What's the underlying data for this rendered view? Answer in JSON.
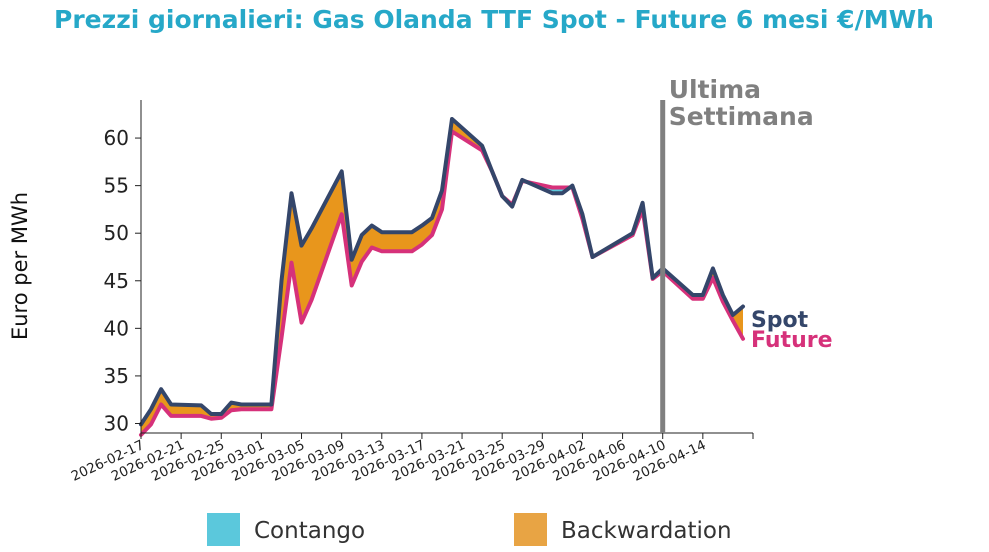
{
  "colors": {
    "title": "#26a8c8",
    "spot": "#34466a",
    "future": "#d6317a",
    "contango": "#5bc8dc",
    "backwardation": "#e8a444",
    "backwardation_fill": "#e8961c",
    "marker": "#808080"
  },
  "chart_data": {
    "type": "line",
    "title": "Prezzi giornalieri: Gas Olanda TTF Spot - Future 6 mesi €/MWh",
    "ylabel": "Euro per MWh",
    "xlabel": "",
    "ylim": [
      29,
      64
    ],
    "y_ticks": [
      30,
      35,
      40,
      45,
      50,
      55,
      60
    ],
    "x_start": "2026-02-17",
    "x_end": "2026-04-19",
    "x_tick_labels": [
      "2026-02-17",
      "2026-02-21",
      "2026-02-25",
      "2026-03-01",
      "2026-03-05",
      "2026-03-09",
      "2026-03-13",
      "2026-03-17",
      "2026-03-21",
      "2026-03-25",
      "2026-03-29",
      "2026-04-02",
      "2026-04-06",
      "2026-04-10",
      "2026-04-14"
    ],
    "dates": [
      "2026-02-17",
      "2026-02-18",
      "2026-02-19",
      "2026-02-20",
      "2026-02-23",
      "2026-02-24",
      "2026-02-25",
      "2026-02-26",
      "2026-02-27",
      "2026-03-02",
      "2026-03-03",
      "2026-03-04",
      "2026-03-05",
      "2026-03-06",
      "2026-03-09",
      "2026-03-10",
      "2026-03-11",
      "2026-03-12",
      "2026-03-13",
      "2026-03-16",
      "2026-03-17",
      "2026-03-18",
      "2026-03-19",
      "2026-03-20",
      "2026-03-23",
      "2026-03-24",
      "2026-03-25",
      "2026-03-26",
      "2026-03-27",
      "2026-03-30",
      "2026-03-31",
      "2026-04-01",
      "2026-04-02",
      "2026-04-03",
      "2026-04-07",
      "2026-04-08",
      "2026-04-09",
      "2026-04-10",
      "2026-04-13",
      "2026-04-14",
      "2026-04-15",
      "2026-04-16",
      "2026-04-17",
      "2026-04-18"
    ],
    "series": [
      {
        "name": "Spot",
        "values": [
          29.9,
          31.5,
          33.6,
          32.0,
          31.9,
          31.0,
          31.0,
          32.2,
          32.0,
          32.0,
          45.0,
          54.2,
          48.7,
          50.5,
          56.5,
          47.2,
          49.8,
          50.8,
          50.1,
          50.1,
          50.8,
          51.6,
          54.5,
          62.0,
          59.2,
          56.5,
          53.9,
          52.8,
          55.6,
          54.2,
          54.2,
          55.0,
          52.0,
          47.5,
          50.0,
          53.2,
          45.3,
          46.3,
          43.5,
          43.5,
          46.3,
          43.5,
          41.4,
          42.3
        ]
      },
      {
        "name": "Future",
        "values": [
          28.8,
          29.9,
          32.0,
          30.8,
          30.8,
          30.5,
          30.6,
          31.4,
          31.5,
          31.5,
          39.0,
          46.9,
          40.6,
          43.0,
          52.0,
          44.5,
          47.0,
          48.5,
          48.1,
          48.1,
          48.8,
          49.8,
          52.5,
          60.7,
          58.7,
          56.5,
          53.9,
          53.0,
          55.5,
          54.8,
          54.8,
          54.8,
          51.5,
          47.5,
          49.8,
          52.5,
          45.2,
          46.0,
          43.1,
          43.1,
          45.3,
          42.8,
          40.8,
          38.9
        ]
      }
    ],
    "annotation": {
      "text_line1": "Ultima",
      "text_line2": "Settimana",
      "date": "2026-04-10"
    },
    "legend": {
      "placement": "bottom",
      "entries": [
        {
          "label": "Contango",
          "color": "#5bc8dc"
        },
        {
          "label": "Backwardation",
          "color": "#e8a444"
        }
      ]
    },
    "grid": false
  }
}
